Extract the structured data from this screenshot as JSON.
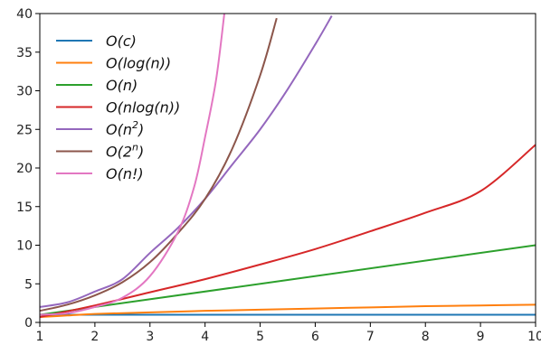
{
  "chart_data": {
    "type": "line",
    "title": "",
    "xlabel": "",
    "ylabel": "",
    "xlim": [
      1,
      10
    ],
    "ylim": [
      0,
      40
    ],
    "x_ticks": [
      1,
      2,
      3,
      4,
      5,
      6,
      7,
      8,
      9,
      10
    ],
    "y_ticks": [
      0,
      5,
      10,
      15,
      20,
      25,
      30,
      35,
      40
    ],
    "grid": false,
    "legend_position": "upper-left",
    "series": [
      {
        "name": "O(c)",
        "legend": {
          "base": "O(",
          "var": "c",
          "sup": "",
          "post": ")"
        },
        "color": "#1f77b4",
        "points": [
          [
            1,
            1
          ],
          [
            10,
            1
          ]
        ]
      },
      {
        "name": "O(log(n))",
        "legend": {
          "base": "O(",
          "var": "log(n)",
          "sup": "",
          "post": ")"
        },
        "color": "#ff7f0e",
        "points": [
          [
            1,
            0.7
          ],
          [
            1.5,
            0.9
          ],
          [
            2,
            1.1
          ],
          [
            3,
            1.3
          ],
          [
            4,
            1.5
          ],
          [
            5,
            1.65
          ],
          [
            6,
            1.8
          ],
          [
            7,
            1.95
          ],
          [
            8,
            2.1
          ],
          [
            9,
            2.2
          ],
          [
            10,
            2.3
          ]
        ]
      },
      {
        "name": "O(n)",
        "legend": {
          "base": "O(",
          "var": "n",
          "sup": "",
          "post": ")"
        },
        "color": "#2ca02c",
        "points": [
          [
            1,
            1
          ],
          [
            10,
            10
          ]
        ]
      },
      {
        "name": "O(nlog(n))",
        "legend": {
          "base": "O(",
          "var": "nlog(n)",
          "sup": "",
          "post": ")"
        },
        "color": "#d62728",
        "points": [
          [
            1,
            0.7
          ],
          [
            2,
            2.2
          ],
          [
            3,
            3.9
          ],
          [
            4,
            5.6
          ],
          [
            5,
            7.5
          ],
          [
            6,
            9.5
          ],
          [
            7,
            11.8
          ],
          [
            8,
            14.2
          ],
          [
            9,
            17
          ],
          [
            10,
            23
          ]
        ]
      },
      {
        "name": "O(n²)",
        "legend": {
          "base": "O(",
          "var": "n",
          "sup": "2",
          "post": ")"
        },
        "color": "#9467bd",
        "points": [
          [
            1,
            2
          ],
          [
            1.5,
            2.6
          ],
          [
            2,
            4
          ],
          [
            2.5,
            5.6
          ],
          [
            3,
            9
          ],
          [
            3.5,
            12.2
          ],
          [
            4,
            16
          ],
          [
            4.5,
            20.5
          ],
          [
            5,
            25
          ],
          [
            5.5,
            30.2
          ],
          [
            6,
            36
          ],
          [
            6.3,
            39.7
          ]
        ]
      },
      {
        "name": "O(2ⁿ)",
        "legend": {
          "base": "O(",
          "var": "2",
          "sup": "n",
          "post": ")"
        },
        "color": "#8c564b",
        "points": [
          [
            1,
            1.5
          ],
          [
            1.5,
            2.3
          ],
          [
            2,
            3.5
          ],
          [
            2.5,
            5.2
          ],
          [
            3,
            7.8
          ],
          [
            3.5,
            11.5
          ],
          [
            4,
            16
          ],
          [
            4.5,
            22.6
          ],
          [
            5,
            32
          ],
          [
            5.3,
            39.4
          ]
        ]
      },
      {
        "name": "O(n!)",
        "legend": {
          "base": "O(",
          "var": "n!",
          "sup": "",
          "post": ")"
        },
        "color": "#e377c2",
        "points": [
          [
            1,
            1
          ],
          [
            1.5,
            1.2
          ],
          [
            2,
            2
          ],
          [
            2.5,
            3.2
          ],
          [
            3,
            6
          ],
          [
            3.5,
            11.6
          ],
          [
            3.8,
            17.5
          ],
          [
            4,
            24
          ],
          [
            4.2,
            31.4
          ],
          [
            4.35,
            40
          ]
        ]
      }
    ]
  }
}
